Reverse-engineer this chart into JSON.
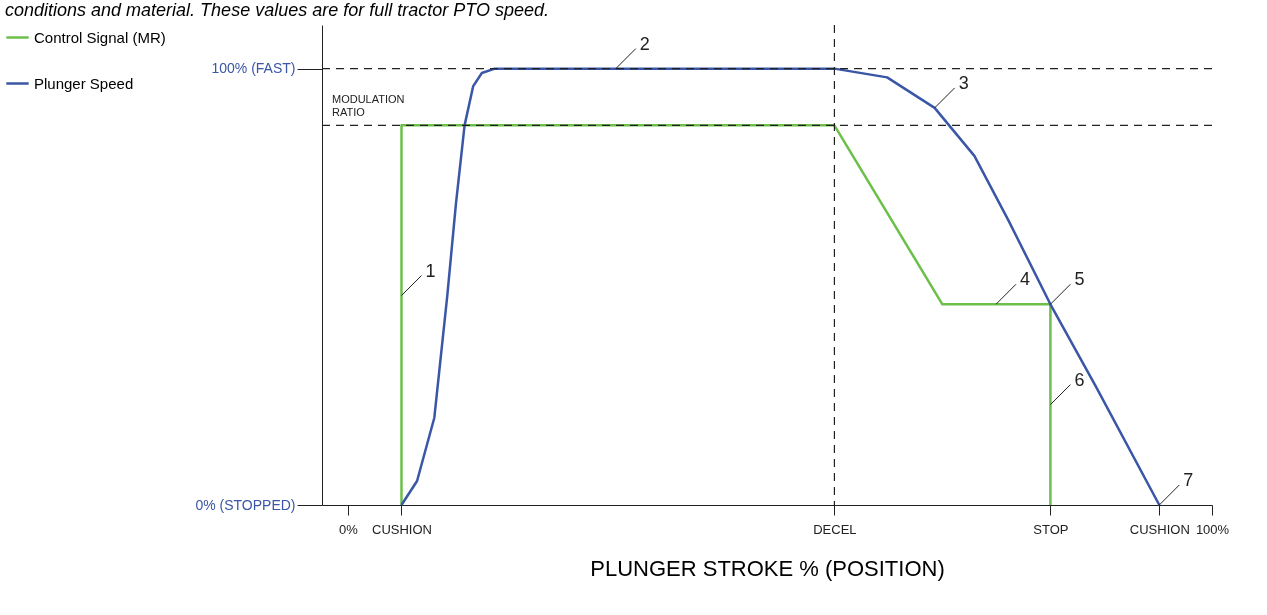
{
  "chart_data": {
    "type": "line",
    "title": "conditions and material. These values are for full tractor PTO speed.",
    "xlabel": "PLUNGER STROKE % (POSITION)",
    "xlim": [
      -3,
      100
    ],
    "ylim": [
      0,
      110
    ],
    "xticks": [
      {
        "value": 0,
        "label": "0%"
      },
      {
        "value": 6.2,
        "label": "CUSHION"
      },
      {
        "value": 56.3,
        "label": "DECEL"
      },
      {
        "value": 81.3,
        "label": "STOP"
      },
      {
        "value": 93.9,
        "label": "CUSHION"
      },
      {
        "value": 100,
        "label": "100%"
      }
    ],
    "yticks": [
      {
        "value": 0,
        "label": "0%  (STOPPED)"
      },
      {
        "value": 100,
        "label": "100%  (FAST)"
      }
    ],
    "series": [
      {
        "name": "Control Signal (MR)",
        "color": "#6cc04a",
        "x": [
          6.2,
          6.2,
          56.3,
          68.8,
          81.3,
          81.3
        ],
        "values": [
          0,
          87,
          87,
          46,
          46,
          0
        ]
      },
      {
        "name": "Plunger Speed",
        "color": "#3a56a6",
        "x": [
          6.2,
          8,
          10,
          11.5,
          12.5,
          13.5,
          14.5,
          15.5,
          17,
          56.3,
          62.4,
          67.9,
          72.5,
          76.5,
          81.3,
          86.6,
          93.9
        ],
        "values": [
          0,
          5.5,
          20,
          48,
          69,
          87,
          96,
          99,
          100,
          100,
          98,
          91,
          80,
          65,
          46,
          27,
          0
        ]
      }
    ],
    "ref_lines": [
      {
        "axis": "y",
        "value": 100,
        "line_style": "dashed"
      },
      {
        "axis": "y",
        "value": 87,
        "label": "MODULATION RATIO",
        "line_style": "dashed"
      },
      {
        "axis": "x",
        "value": 56.3,
        "line_style": "dashed"
      }
    ],
    "annotations": [
      {
        "text": "1",
        "x": 6.2,
        "y": 48
      },
      {
        "text": "2",
        "x": 31,
        "y": 100
      },
      {
        "text": "3",
        "x": 67.9,
        "y": 91
      },
      {
        "text": "4",
        "x": 75,
        "y": 46
      },
      {
        "text": "5",
        "x": 81.3,
        "y": 46
      },
      {
        "text": "6",
        "x": 81.3,
        "y": 23
      },
      {
        "text": "7",
        "x": 93.9,
        "y": 0
      }
    ],
    "legend": "left",
    "grid": false,
    "marker": "none",
    "line_style": "solid"
  }
}
